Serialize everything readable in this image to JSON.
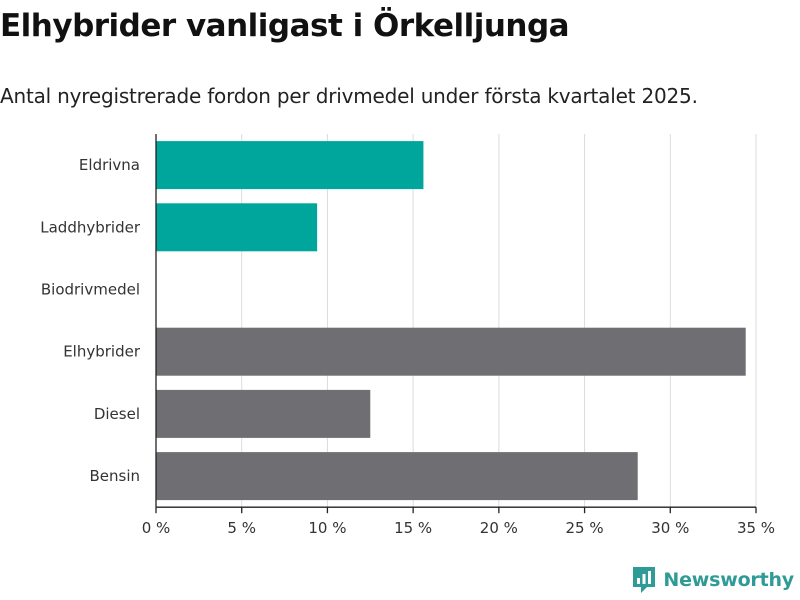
{
  "header": {
    "title": "Elhybrider vanligast i Örkelljunga",
    "subtitle": "Antal nyregistrerade fordon per drivmedel under första kvartalet 2025."
  },
  "chart_data": {
    "type": "bar",
    "orientation": "horizontal",
    "categories": [
      "Eldrivna",
      "Laddhybrider",
      "Biodrivmedel",
      "Elhybrider",
      "Diesel",
      "Bensin"
    ],
    "values": [
      15.6,
      9.4,
      0,
      34.4,
      12.5,
      28.1
    ],
    "bar_colors": [
      "#00a59b",
      "#00a59b",
      "#00a59b",
      "#6f6e73",
      "#6f6e73",
      "#6f6e73"
    ],
    "xlim": [
      0,
      35
    ],
    "xticks": [
      0,
      5,
      10,
      15,
      20,
      25,
      30,
      35
    ],
    "xtick_labels": [
      "0 %",
      "5 %",
      "10 %",
      "15 %",
      "20 %",
      "25 %",
      "30 %",
      "35 %"
    ],
    "grid": "vertical"
  },
  "branding": {
    "logo_text": "Newsworthy",
    "logo_icon": "newsworthy-logo-icon",
    "logo_color": "#2f9b97"
  }
}
